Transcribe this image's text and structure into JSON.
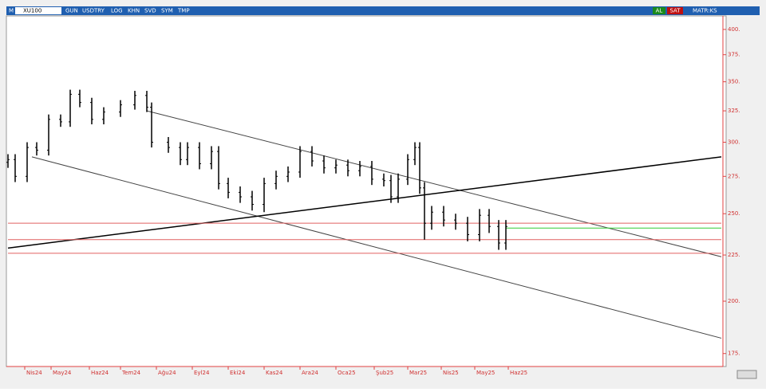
{
  "toolbar": {
    "menu": "M",
    "symbol": "XU100",
    "buttons": [
      "GUN",
      "USDTRY",
      "LOG",
      "KHN",
      "SVD",
      "SYM",
      "TMP"
    ],
    "buy": "AL",
    "sell": "SAT",
    "matrix": "MATR:KS"
  },
  "chart_data": {
    "type": "ohlc",
    "log_scale": true,
    "color": "#000000",
    "x": [
      0,
      3,
      8,
      12,
      17,
      22,
      26,
      30,
      35,
      40,
      47,
      53,
      58,
      60,
      67,
      72,
      75,
      80,
      85,
      88,
      92,
      97,
      102,
      107,
      112,
      117,
      122,
      127,
      132,
      137,
      142,
      147,
      152,
      157,
      160,
      163,
      167,
      170,
      172,
      174,
      177,
      182,
      187,
      192,
      197,
      201,
      205,
      208
    ],
    "open": [
      285,
      287,
      275,
      296,
      294,
      318,
      316,
      339,
      332,
      318,
      324,
      330,
      338,
      328,
      300,
      296,
      287,
      296,
      284,
      293,
      270,
      264,
      261,
      256,
      270,
      275,
      278,
      293,
      286,
      281,
      283,
      279,
      282,
      273,
      272,
      261,
      273,
      287,
      296,
      267,
      244,
      251,
      246,
      244,
      237,
      249,
      242,
      232
    ],
    "high": [
      291,
      291,
      300,
      300,
      322,
      322,
      343,
      343,
      336,
      328,
      334,
      342,
      342,
      332,
      304,
      300,
      300,
      300,
      297,
      297,
      274,
      268,
      265,
      274,
      279,
      282,
      297,
      297,
      290,
      287,
      287,
      286,
      286,
      277,
      276,
      277,
      291,
      300,
      300,
      271,
      255,
      255,
      250,
      248,
      253,
      253,
      246,
      246
    ],
    "low": [
      281,
      271,
      271,
      290,
      290,
      312,
      312,
      328,
      314,
      314,
      320,
      326,
      324,
      296,
      292,
      283,
      283,
      280,
      280,
      266,
      260,
      257,
      252,
      251,
      266,
      271,
      274,
      282,
      277,
      277,
      275,
      275,
      269,
      268,
      257,
      257,
      269,
      283,
      263,
      234,
      240,
      242,
      240,
      233,
      233,
      238,
      228,
      228
    ],
    "close": [
      287,
      275,
      296,
      294,
      318,
      316,
      339,
      332,
      318,
      324,
      330,
      338,
      328,
      300,
      296,
      287,
      296,
      284,
      293,
      270,
      264,
      261,
      256,
      270,
      275,
      278,
      293,
      286,
      281,
      283,
      279,
      282,
      273,
      272,
      261,
      273,
      287,
      296,
      267,
      244,
      251,
      246,
      244,
      237,
      249,
      242,
      232,
      242
    ],
    "lines": [
      {
        "color": "#444444",
        "x": [
          58,
          298
        ],
        "y": [
          325,
          224
        ]
      },
      {
        "color": "#444444",
        "x": [
          10,
          298
        ],
        "y": [
          289,
          182
        ]
      },
      {
        "color": "#000000",
        "x": [
          0,
          298
        ],
        "y": [
          229,
          289
        ]
      },
      {
        "color": "#e06060",
        "x": [
          0,
          298
        ],
        "y": [
          244,
          244
        ]
      },
      {
        "color": "#e06060",
        "x": [
          0,
          298
        ],
        "y": [
          234,
          234
        ]
      },
      {
        "color": "#e06060",
        "x": [
          0,
          298
        ],
        "y": [
          226,
          226
        ]
      },
      {
        "color": "#33cc33",
        "x": [
          208,
          298
        ],
        "y": [
          241,
          241
        ]
      }
    ],
    "xlim": [
      0,
      298
    ],
    "ylim": [
      170,
      414
    ],
    "xticks": [
      {
        "value": 7,
        "label": "Nis24"
      },
      {
        "value": 18,
        "label": "May24"
      },
      {
        "value": 34,
        "label": "Haz24"
      },
      {
        "value": 47,
        "label": "Tem24"
      },
      {
        "value": 62,
        "label": "Ağu24"
      },
      {
        "value": 77,
        "label": "Eyl24"
      },
      {
        "value": 92,
        "label": "Eki24"
      },
      {
        "value": 107,
        "label": "Kas24"
      },
      {
        "value": 122,
        "label": "Ara24"
      },
      {
        "value": 137,
        "label": "Oca25"
      },
      {
        "value": 153,
        "label": "Şub25"
      },
      {
        "value": 167,
        "label": "Mar25"
      },
      {
        "value": 181,
        "label": "Nis25"
      },
      {
        "value": 195,
        "label": "May25"
      },
      {
        "value": 209,
        "label": "Haz25"
      }
    ],
    "yticks": [
      {
        "value": 175,
        "label": "175."
      },
      {
        "value": 200,
        "label": "200."
      },
      {
        "value": 225,
        "label": "225."
      },
      {
        "value": 250,
        "label": "250."
      },
      {
        "value": 275,
        "label": "275."
      },
      {
        "value": 300,
        "label": "300."
      },
      {
        "value": 325,
        "label": "325."
      },
      {
        "value": 350,
        "label": "350."
      },
      {
        "value": 375,
        "label": "375."
      },
      {
        "value": 400,
        "label": "400."
      }
    ]
  }
}
